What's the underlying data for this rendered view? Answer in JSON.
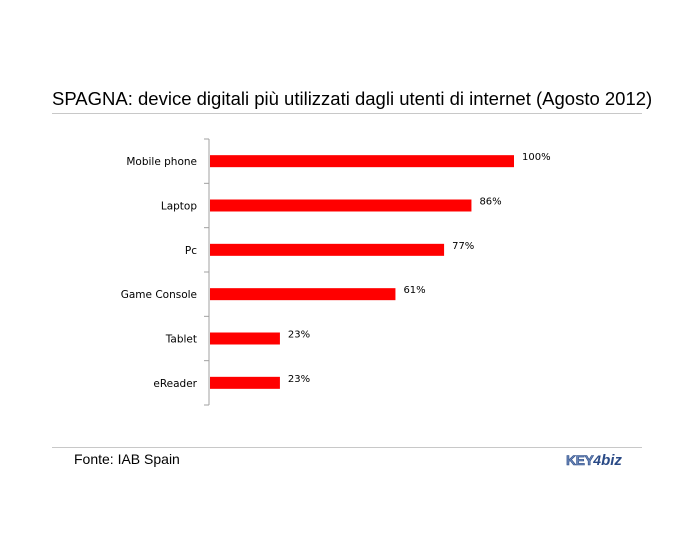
{
  "title": "SPAGNA: device digitali più utilizzati dagli utenti di internet (Agosto 2012)",
  "source": "Fonte: IAB Spain",
  "logo": {
    "part1": "KEY",
    "part2": "4",
    "part3": "biz"
  },
  "colors": {
    "bar": "#ff0000",
    "axis": "#a0a0a0"
  },
  "chart_data": {
    "type": "bar",
    "orientation": "horizontal",
    "categories": [
      "Mobile phone",
      "Laptop",
      "Pc",
      "Game Console",
      "Tablet",
      "eReader"
    ],
    "values": [
      100,
      86,
      77,
      61,
      23,
      23
    ],
    "data_labels": [
      "100%",
      "86%",
      "77%",
      "61%",
      "23%",
      "23%"
    ],
    "xlim": [
      0,
      100
    ],
    "grid": false,
    "legend": false
  }
}
